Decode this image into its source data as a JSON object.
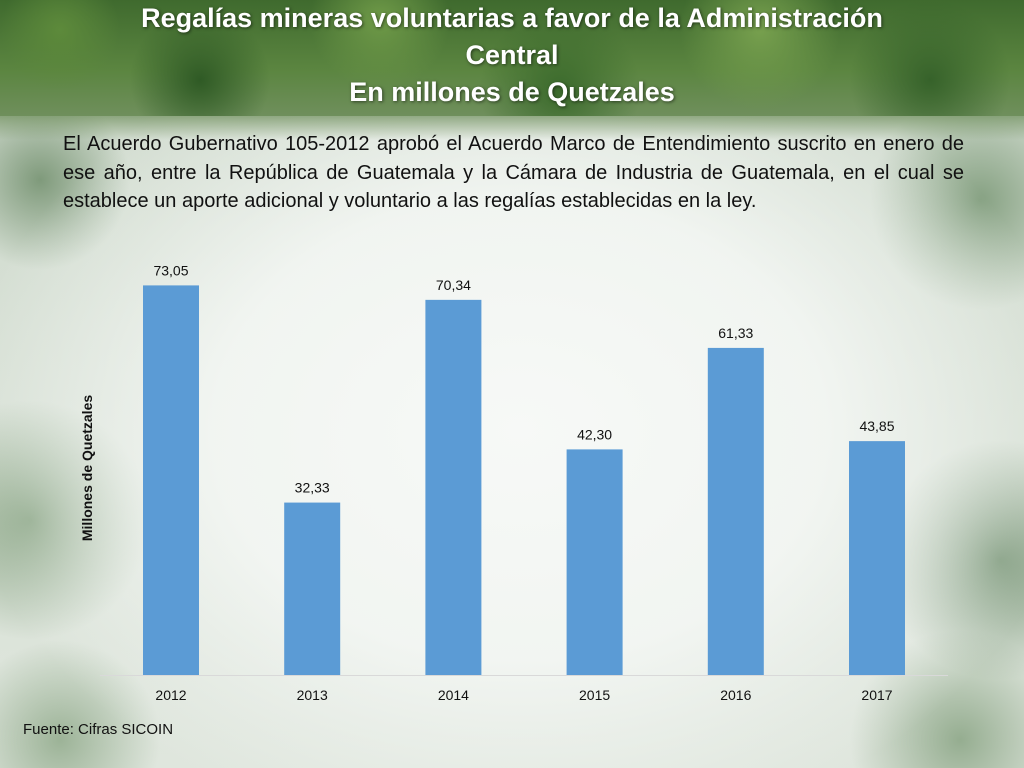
{
  "header": {
    "title_lines": [
      "Regalías mineras voluntarias a favor de la Administración",
      "Central",
      "En millones de Quetzales"
    ]
  },
  "intro": "El Acuerdo Gubernativo 105-2012 aprobó el Acuerdo Marco de Entendimiento suscrito en enero de ese año, entre la República de Guatemala y la Cámara de Industria de Guatemala, en el cual se establece un aporte adicional y voluntario a las regalías establecidas en la ley.",
  "source": "Fuente: Cifras SICOIN",
  "colors": {
    "bar": "#5b9bd5",
    "text": "#111111",
    "title": "#ffffff"
  },
  "chart_data": {
    "type": "bar",
    "categories": [
      "2012",
      "2013",
      "2014",
      "2015",
      "2016",
      "2017"
    ],
    "values": [
      73.05,
      32.33,
      70.34,
      42.3,
      61.33,
      43.85
    ],
    "data_labels": [
      "73,05",
      "32,33",
      "70,34",
      "42,30",
      "61,33",
      "43,85"
    ],
    "ylabel": "Millones de Quetzales",
    "xlabel": "",
    "ylim": [
      0,
      75
    ],
    "grid": false,
    "legend": "none"
  }
}
